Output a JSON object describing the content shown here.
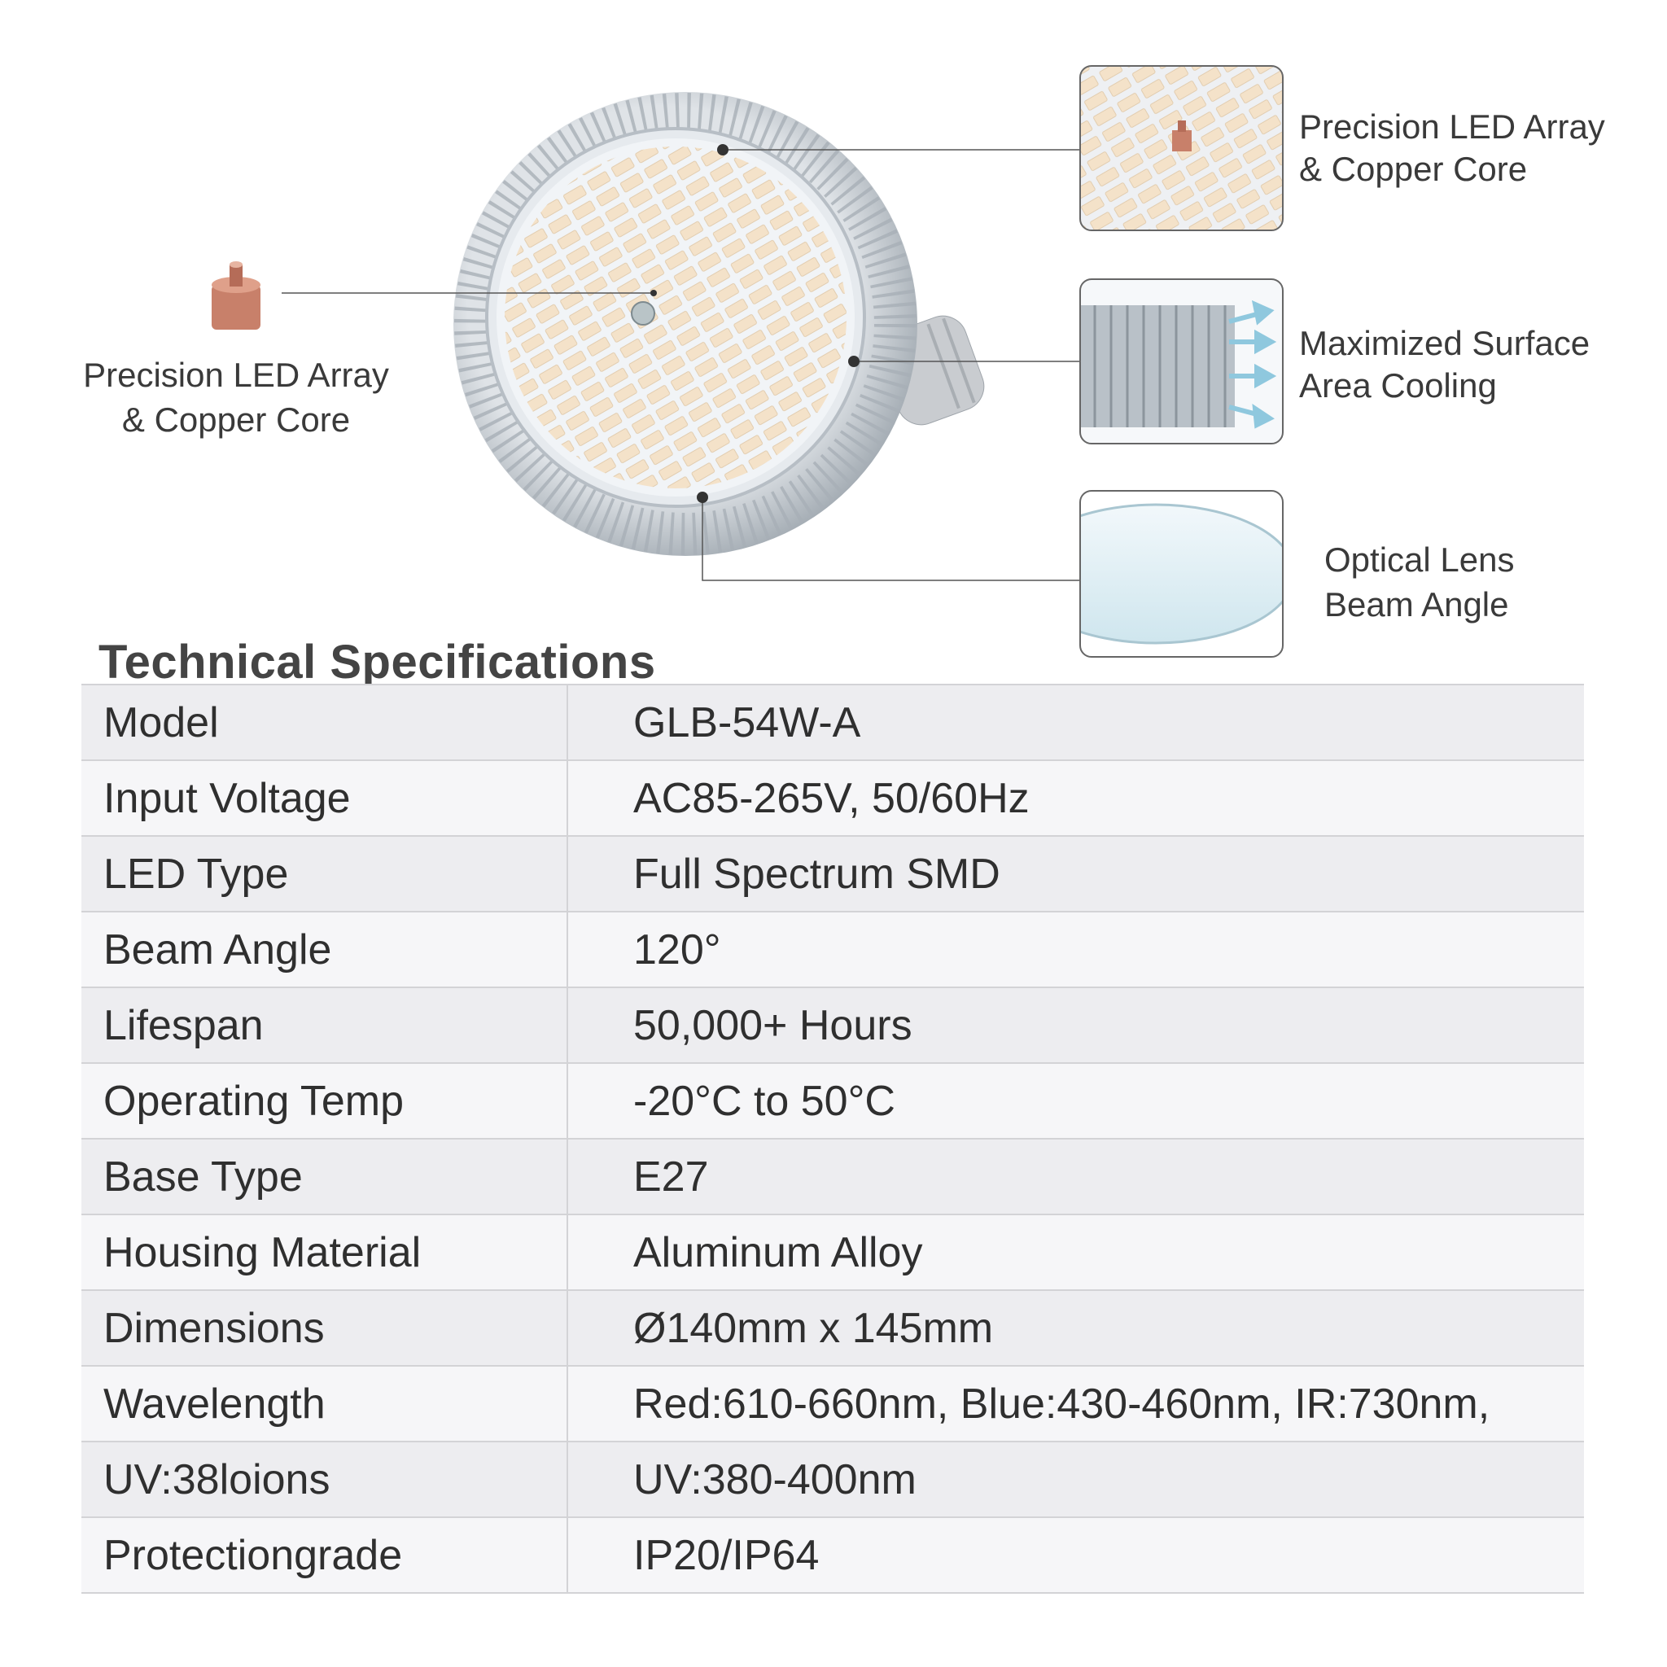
{
  "left_callout": {
    "lines": [
      "Precision LED Array",
      "& Copper Core"
    ]
  },
  "right_callouts": [
    {
      "lines": [
        "Precision LED Array",
        "& Copper Core"
      ]
    },
    {
      "lines": [
        "Maximized Surface",
        "Area Cooling"
      ]
    },
    {
      "lines": [
        "Optical Lens",
        "Beam Angle"
      ]
    }
  ],
  "section_title": "Technical Specifications",
  "table": {
    "rows": [
      [
        "Model",
        "GLB-54W-A"
      ],
      [
        "Input Voltage",
        "AC85-265V, 50/60Hz"
      ],
      [
        "LED Type",
        "Full Spectrum SMD"
      ],
      [
        "Beam Angle",
        "120°"
      ],
      [
        "Lifespan",
        "50,000+ Hours"
      ],
      [
        "Operating Temp",
        "-20°C to 50°C"
      ],
      [
        "Base Type",
        "E27"
      ],
      [
        "Housing Material",
        "Aluminum Alloy"
      ],
      [
        "Dimensions",
        "Ø140mm x 145mm"
      ],
      [
        "Wavelength",
        "Red:610-660nm, Blue:430-460nm, IR:730nm,"
      ],
      [
        "UV:38loions",
        "UV:380-400nm"
      ],
      [
        "Protectiongrade",
        "IP20/IP64"
      ]
    ]
  }
}
